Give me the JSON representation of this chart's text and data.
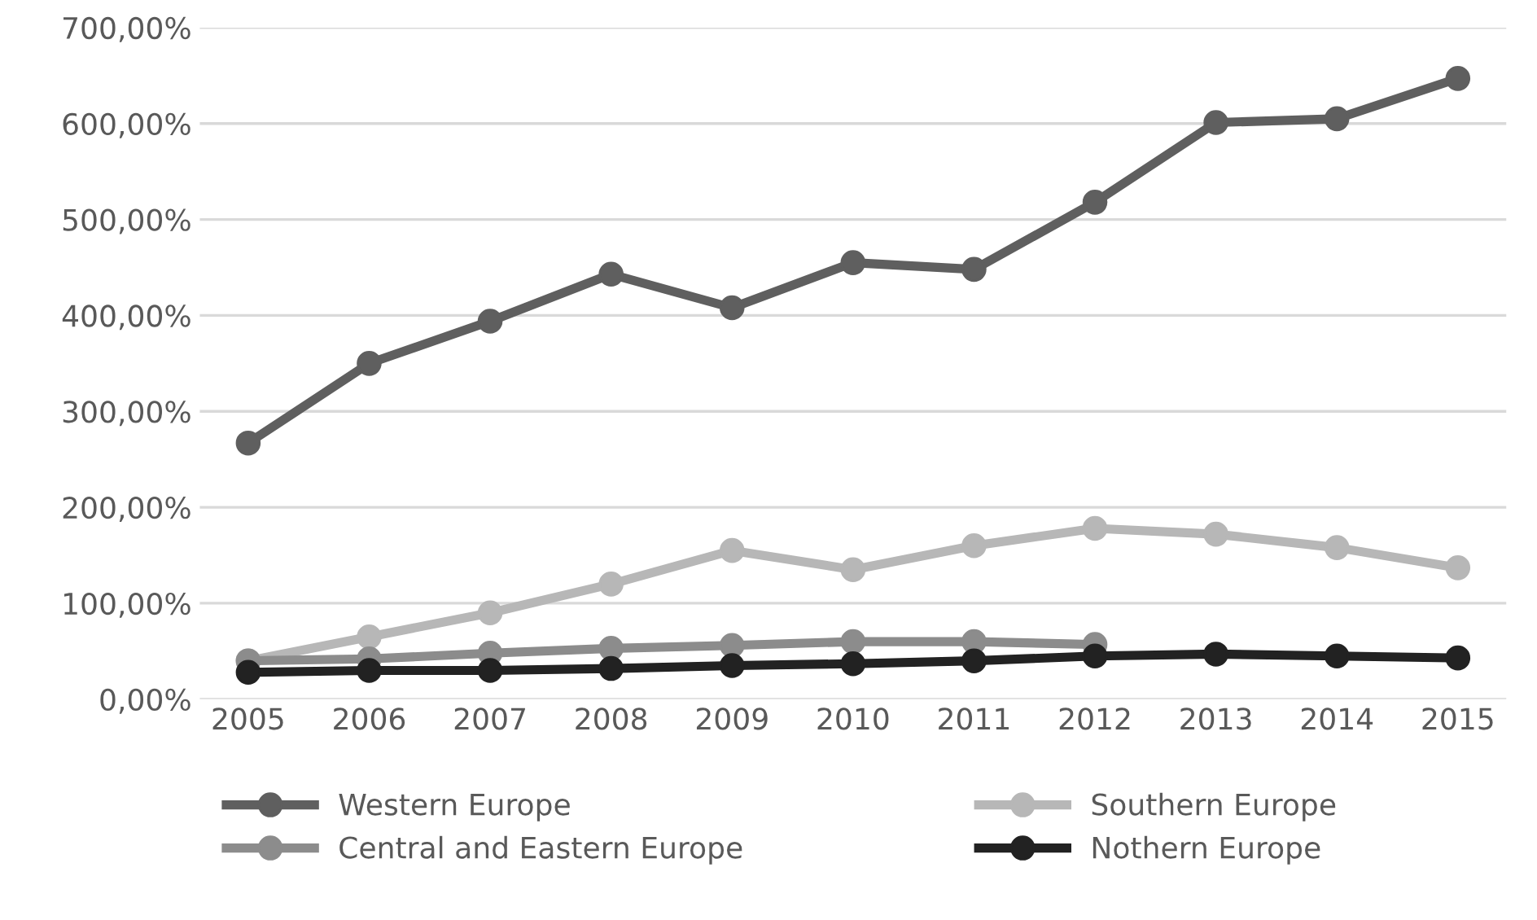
{
  "chart_data": {
    "type": "line",
    "categories": [
      "2005",
      "2006",
      "2007",
      "2008",
      "2009",
      "2010",
      "2011",
      "2012",
      "2013",
      "2014",
      "2015"
    ],
    "series": [
      {
        "name": "Western Europe",
        "color": "#5f5f5f",
        "values": [
          267,
          350,
          394,
          443,
          408,
          455,
          448,
          518,
          601,
          605,
          647
        ]
      },
      {
        "name": "Southern Europe",
        "color": "#b7b7b7",
        "values": [
          40,
          65,
          90,
          120,
          155,
          135,
          160,
          178,
          172,
          158,
          137
        ]
      },
      {
        "name": "Central and Eastern Europe",
        "color": "#8c8c8c",
        "values": [
          40,
          42,
          48,
          53,
          56,
          60,
          60,
          57,
          null,
          null,
          null
        ]
      },
      {
        "name": "Nothern Europe",
        "color": "#222222",
        "values": [
          28,
          30,
          30,
          32,
          35,
          37,
          40,
          45,
          47,
          45,
          43
        ]
      }
    ],
    "ylim": [
      0,
      700
    ],
    "yticks": [
      {
        "value": 0,
        "label": "0,00%"
      },
      {
        "value": 100,
        "label": "100,00%"
      },
      {
        "value": 200,
        "label": "200,00%"
      },
      {
        "value": 300,
        "label": "300,00%"
      },
      {
        "value": 400,
        "label": "400,00%"
      },
      {
        "value": 500,
        "label": "500,00%"
      },
      {
        "value": 600,
        "label": "600,00%"
      },
      {
        "value": 700,
        "label": "700,00%"
      }
    ],
    "grid": "y",
    "legend": "bottom",
    "marker": "circle",
    "line_style": "solid"
  }
}
